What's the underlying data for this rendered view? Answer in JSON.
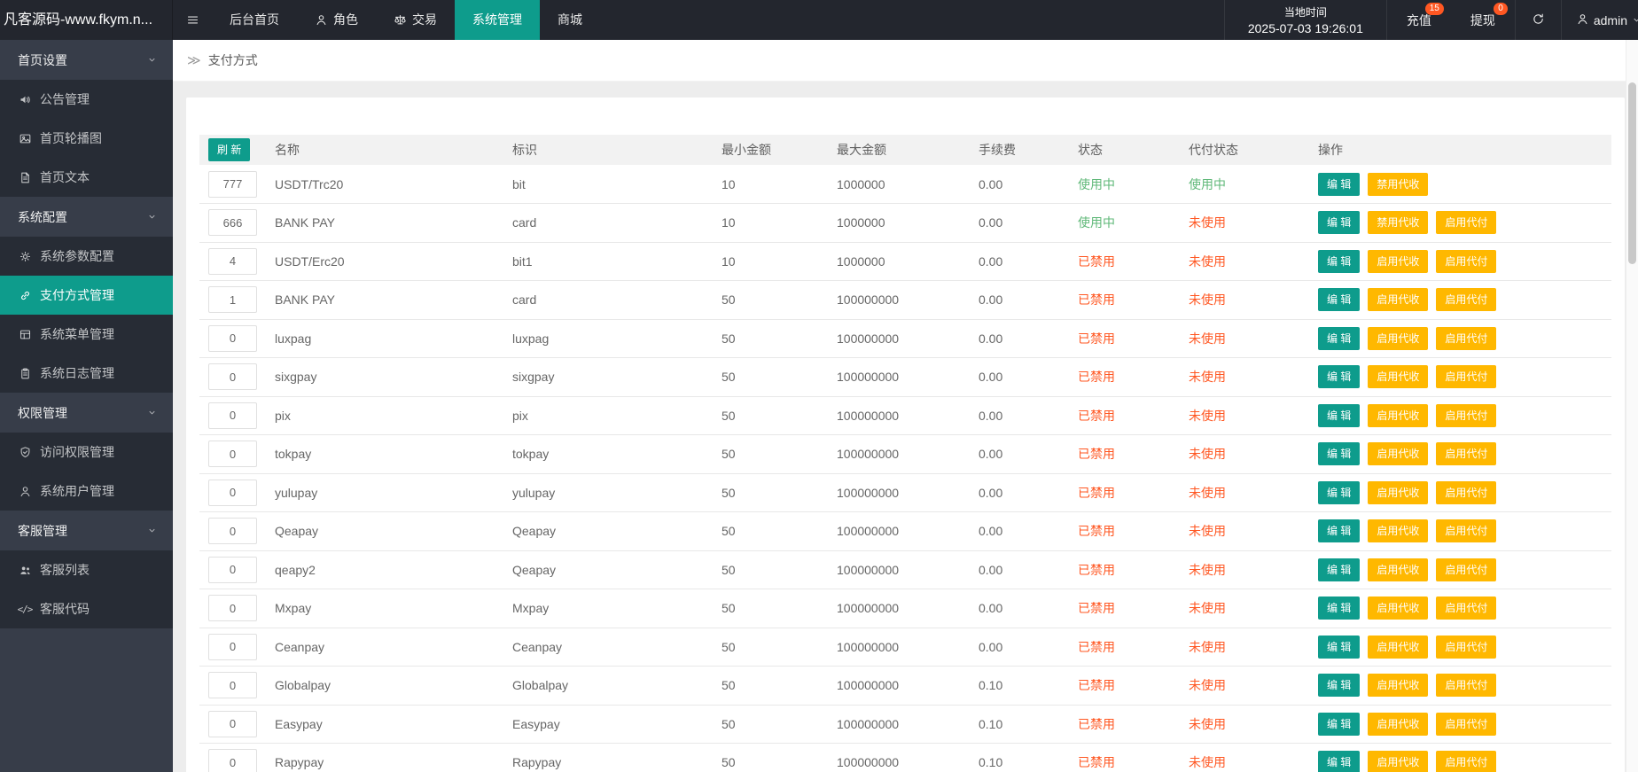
{
  "colors": {
    "teal": "#0e9c8c",
    "orange": "#ffb800",
    "green": "#5fb878",
    "red": "#ff5722",
    "header_bg": "#23262e",
    "side_bg": "#373d49",
    "side_child_bg": "#272c35"
  },
  "topbar": {
    "logo": "凡客源码-www.fkym.n...",
    "nav": [
      {
        "label": "后台首页",
        "icon": null,
        "active": false
      },
      {
        "label": "角色",
        "icon": "user",
        "active": false
      },
      {
        "label": "交易",
        "icon": "scales",
        "active": false
      },
      {
        "label": "系统管理",
        "icon": null,
        "active": true
      },
      {
        "label": "商城",
        "icon": null,
        "active": false
      }
    ],
    "time_label": "当地时间",
    "time_value": "2025-07-03 19:26:01",
    "recharge": {
      "label": "充值",
      "badge": "15"
    },
    "withdraw": {
      "label": "提现",
      "badge": "0"
    },
    "user": "admin"
  },
  "sidebar": {
    "groups": [
      {
        "label": "首页设置",
        "items": [
          {
            "icon": "speaker",
            "label": "公告管理",
            "active": false
          },
          {
            "icon": "image",
            "label": "首页轮播图",
            "active": false
          },
          {
            "icon": "doc",
            "label": "首页文本",
            "active": false
          }
        ]
      },
      {
        "label": "系统配置",
        "items": [
          {
            "icon": "gear",
            "label": "系统参数配置",
            "active": false
          },
          {
            "icon": "link",
            "label": "支付方式管理",
            "active": true
          },
          {
            "icon": "grid",
            "label": "系统菜单管理",
            "active": false
          },
          {
            "icon": "clipboard",
            "label": "系统日志管理",
            "active": false
          }
        ]
      },
      {
        "label": "权限管理",
        "items": [
          {
            "icon": "shield",
            "label": "访问权限管理",
            "active": false
          },
          {
            "icon": "user",
            "label": "系统用户管理",
            "active": false
          }
        ]
      },
      {
        "label": "客服管理",
        "items": [
          {
            "icon": "people",
            "label": "客服列表",
            "active": false
          },
          {
            "icon": "code",
            "label": "客服代码",
            "active": false
          }
        ]
      }
    ]
  },
  "breadcrumb": {
    "icon": "≫",
    "label": "支付方式"
  },
  "table": {
    "refresh_label": "刷 新",
    "headers": [
      "名称",
      "标识",
      "最小金额",
      "最大金额",
      "手续费",
      "状态",
      "代付状态",
      "操作"
    ],
    "rows": [
      {
        "sort": "777",
        "name": "USDT/Trc20",
        "code": "bit",
        "min": "10",
        "max": "1000000",
        "fee": "0.00",
        "status": {
          "text": "使用中",
          "on": true
        },
        "dstatus": {
          "text": "使用中",
          "on": true
        },
        "actions": [
          {
            "label": "编 辑",
            "color": "teal",
            "name": "edit-button"
          },
          {
            "label": "禁用代收",
            "color": "orange",
            "name": "disable-collect-button"
          }
        ]
      },
      {
        "sort": "666",
        "name": "BANK PAY",
        "code": "card",
        "min": "10",
        "max": "1000000",
        "fee": "0.00",
        "status": {
          "text": "使用中",
          "on": true
        },
        "dstatus": {
          "text": "未使用",
          "on": false
        },
        "actions": [
          {
            "label": "编 辑",
            "color": "teal",
            "name": "edit-button"
          },
          {
            "label": "禁用代收",
            "color": "orange",
            "name": "disable-collect-button"
          },
          {
            "label": "启用代付",
            "color": "orange",
            "name": "enable-payout-button"
          }
        ]
      },
      {
        "sort": "4",
        "name": "USDT/Erc20",
        "code": "bit1",
        "min": "10",
        "max": "1000000",
        "fee": "0.00",
        "status": {
          "text": "已禁用",
          "on": false
        },
        "dstatus": {
          "text": "未使用",
          "on": false
        },
        "actions": [
          {
            "label": "编 辑",
            "color": "teal",
            "name": "edit-button"
          },
          {
            "label": "启用代收",
            "color": "orange",
            "name": "enable-collect-button"
          },
          {
            "label": "启用代付",
            "color": "orange",
            "name": "enable-payout-button"
          }
        ]
      },
      {
        "sort": "1",
        "name": "BANK PAY",
        "code": "card",
        "min": "50",
        "max": "100000000",
        "fee": "0.00",
        "status": {
          "text": "已禁用",
          "on": false
        },
        "dstatus": {
          "text": "未使用",
          "on": false
        },
        "actions": [
          {
            "label": "编 辑",
            "color": "teal",
            "name": "edit-button"
          },
          {
            "label": "启用代收",
            "color": "orange",
            "name": "enable-collect-button"
          },
          {
            "label": "启用代付",
            "color": "orange",
            "name": "enable-payout-button"
          }
        ]
      },
      {
        "sort": "0",
        "name": "luxpag",
        "code": "luxpag",
        "min": "50",
        "max": "100000000",
        "fee": "0.00",
        "status": {
          "text": "已禁用",
          "on": false
        },
        "dstatus": {
          "text": "未使用",
          "on": false
        },
        "actions": [
          {
            "label": "编 辑",
            "color": "teal",
            "name": "edit-button"
          },
          {
            "label": "启用代收",
            "color": "orange",
            "name": "enable-collect-button"
          },
          {
            "label": "启用代付",
            "color": "orange",
            "name": "enable-payout-button"
          }
        ]
      },
      {
        "sort": "0",
        "name": "sixgpay",
        "code": "sixgpay",
        "min": "50",
        "max": "100000000",
        "fee": "0.00",
        "status": {
          "text": "已禁用",
          "on": false
        },
        "dstatus": {
          "text": "未使用",
          "on": false
        },
        "actions": [
          {
            "label": "编 辑",
            "color": "teal",
            "name": "edit-button"
          },
          {
            "label": "启用代收",
            "color": "orange",
            "name": "enable-collect-button"
          },
          {
            "label": "启用代付",
            "color": "orange",
            "name": "enable-payout-button"
          }
        ]
      },
      {
        "sort": "0",
        "name": "pix",
        "code": "pix",
        "min": "50",
        "max": "100000000",
        "fee": "0.00",
        "status": {
          "text": "已禁用",
          "on": false
        },
        "dstatus": {
          "text": "未使用",
          "on": false
        },
        "actions": [
          {
            "label": "编 辑",
            "color": "teal",
            "name": "edit-button"
          },
          {
            "label": "启用代收",
            "color": "orange",
            "name": "enable-collect-button"
          },
          {
            "label": "启用代付",
            "color": "orange",
            "name": "enable-payout-button"
          }
        ]
      },
      {
        "sort": "0",
        "name": "tokpay",
        "code": "tokpay",
        "min": "50",
        "max": "100000000",
        "fee": "0.00",
        "status": {
          "text": "已禁用",
          "on": false
        },
        "dstatus": {
          "text": "未使用",
          "on": false
        },
        "actions": [
          {
            "label": "编 辑",
            "color": "teal",
            "name": "edit-button"
          },
          {
            "label": "启用代收",
            "color": "orange",
            "name": "enable-collect-button"
          },
          {
            "label": "启用代付",
            "color": "orange",
            "name": "enable-payout-button"
          }
        ]
      },
      {
        "sort": "0",
        "name": "yulupay",
        "code": "yulupay",
        "min": "50",
        "max": "100000000",
        "fee": "0.00",
        "status": {
          "text": "已禁用",
          "on": false
        },
        "dstatus": {
          "text": "未使用",
          "on": false
        },
        "actions": [
          {
            "label": "编 辑",
            "color": "teal",
            "name": "edit-button"
          },
          {
            "label": "启用代收",
            "color": "orange",
            "name": "enable-collect-button"
          },
          {
            "label": "启用代付",
            "color": "orange",
            "name": "enable-payout-button"
          }
        ]
      },
      {
        "sort": "0",
        "name": "Qeapay",
        "code": "Qeapay",
        "min": "50",
        "max": "100000000",
        "fee": "0.00",
        "status": {
          "text": "已禁用",
          "on": false
        },
        "dstatus": {
          "text": "未使用",
          "on": false
        },
        "actions": [
          {
            "label": "编 辑",
            "color": "teal",
            "name": "edit-button"
          },
          {
            "label": "启用代收",
            "color": "orange",
            "name": "enable-collect-button"
          },
          {
            "label": "启用代付",
            "color": "orange",
            "name": "enable-payout-button"
          }
        ]
      },
      {
        "sort": "0",
        "name": "qeapy2",
        "code": "Qeapay",
        "min": "50",
        "max": "100000000",
        "fee": "0.00",
        "status": {
          "text": "已禁用",
          "on": false
        },
        "dstatus": {
          "text": "未使用",
          "on": false
        },
        "actions": [
          {
            "label": "编 辑",
            "color": "teal",
            "name": "edit-button"
          },
          {
            "label": "启用代收",
            "color": "orange",
            "name": "enable-collect-button"
          },
          {
            "label": "启用代付",
            "color": "orange",
            "name": "enable-payout-button"
          }
        ]
      },
      {
        "sort": "0",
        "name": "Mxpay",
        "code": "Mxpay",
        "min": "50",
        "max": "100000000",
        "fee": "0.00",
        "status": {
          "text": "已禁用",
          "on": false
        },
        "dstatus": {
          "text": "未使用",
          "on": false
        },
        "actions": [
          {
            "label": "编 辑",
            "color": "teal",
            "name": "edit-button"
          },
          {
            "label": "启用代收",
            "color": "orange",
            "name": "enable-collect-button"
          },
          {
            "label": "启用代付",
            "color": "orange",
            "name": "enable-payout-button"
          }
        ]
      },
      {
        "sort": "0",
        "name": "Ceanpay",
        "code": "Ceanpay",
        "min": "50",
        "max": "100000000",
        "fee": "0.00",
        "status": {
          "text": "已禁用",
          "on": false
        },
        "dstatus": {
          "text": "未使用",
          "on": false
        },
        "actions": [
          {
            "label": "编 辑",
            "color": "teal",
            "name": "edit-button"
          },
          {
            "label": "启用代收",
            "color": "orange",
            "name": "enable-collect-button"
          },
          {
            "label": "启用代付",
            "color": "orange",
            "name": "enable-payout-button"
          }
        ]
      },
      {
        "sort": "0",
        "name": "Globalpay",
        "code": "Globalpay",
        "min": "50",
        "max": "100000000",
        "fee": "0.10",
        "status": {
          "text": "已禁用",
          "on": false
        },
        "dstatus": {
          "text": "未使用",
          "on": false
        },
        "actions": [
          {
            "label": "编 辑",
            "color": "teal",
            "name": "edit-button"
          },
          {
            "label": "启用代收",
            "color": "orange",
            "name": "enable-collect-button"
          },
          {
            "label": "启用代付",
            "color": "orange",
            "name": "enable-payout-button"
          }
        ]
      },
      {
        "sort": "0",
        "name": "Easypay",
        "code": "Easypay",
        "min": "50",
        "max": "100000000",
        "fee": "0.10",
        "status": {
          "text": "已禁用",
          "on": false
        },
        "dstatus": {
          "text": "未使用",
          "on": false
        },
        "actions": [
          {
            "label": "编 辑",
            "color": "teal",
            "name": "edit-button"
          },
          {
            "label": "启用代收",
            "color": "orange",
            "name": "enable-collect-button"
          },
          {
            "label": "启用代付",
            "color": "orange",
            "name": "enable-payout-button"
          }
        ]
      },
      {
        "sort": "0",
        "name": "Rapypay",
        "code": "Rapypay",
        "min": "50",
        "max": "100000000",
        "fee": "0.10",
        "status": {
          "text": "已禁用",
          "on": false
        },
        "dstatus": {
          "text": "未使用",
          "on": false
        },
        "actions": [
          {
            "label": "编 辑",
            "color": "teal",
            "name": "edit-button"
          },
          {
            "label": "启用代收",
            "color": "orange",
            "name": "enable-collect-button"
          },
          {
            "label": "启用代付",
            "color": "orange",
            "name": "enable-payout-button"
          }
        ]
      }
    ]
  }
}
